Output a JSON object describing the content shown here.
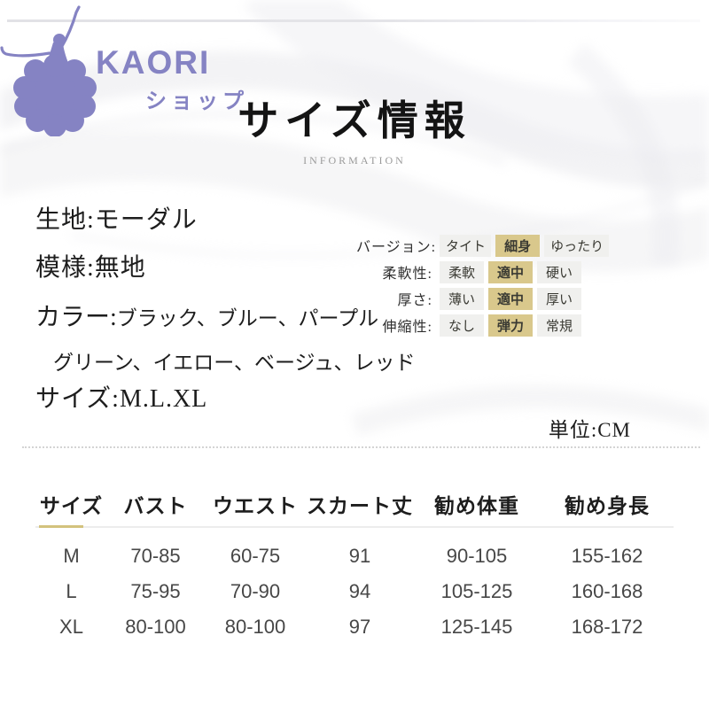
{
  "brand": {
    "name": "KAORI",
    "subtitle": "ショップ",
    "logo_icon": "ballet-dancer",
    "purple": "#8583c3"
  },
  "header": {
    "title": "サイズ情報",
    "subtitle": "INFORMATION"
  },
  "product": {
    "fabric_line": "生地:モーダル",
    "pattern_line": "模様:無地",
    "color_label": "カラー:",
    "color_values_line1": "ブラック、ブルー、パープル",
    "color_values_line2": "グリーン、イエロー、ベージュ、レッド",
    "size_line": "サイズ:M.L.XL"
  },
  "attributes": [
    {
      "label": "バージョン:",
      "options": [
        "タイト",
        "細身",
        "ゆったり"
      ],
      "selected": 1
    },
    {
      "label": "柔軟性:",
      "options": [
        "柔軟",
        "適中",
        "硬い"
      ],
      "selected": 1
    },
    {
      "label": "厚さ:",
      "options": [
        "薄い",
        "適中",
        "厚い"
      ],
      "selected": 1
    },
    {
      "label": "伸縮性:",
      "options": [
        "なし",
        "弾力",
        "常規"
      ],
      "selected": 1
    }
  ],
  "unit_label": "単位:CM",
  "size_table": {
    "columns": [
      "サイズ",
      "バスト",
      "ウエスト",
      "スカート丈",
      "勧め体重",
      "勧め身長"
    ],
    "rows": [
      [
        "M",
        "70-85",
        "60-75",
        "91",
        "90-105",
        "155-162"
      ],
      [
        "L",
        "75-95",
        "70-90",
        "94",
        "105-125",
        "160-168"
      ],
      [
        "XL",
        "80-100",
        "80-100",
        "97",
        "125-145",
        "168-172"
      ]
    ]
  },
  "colors": {
    "selected_chip": "#d9c88c",
    "chip_bg": "#f0f0ee",
    "accent_underline": "#d3c27d",
    "brand_purple": "#8583c3"
  }
}
